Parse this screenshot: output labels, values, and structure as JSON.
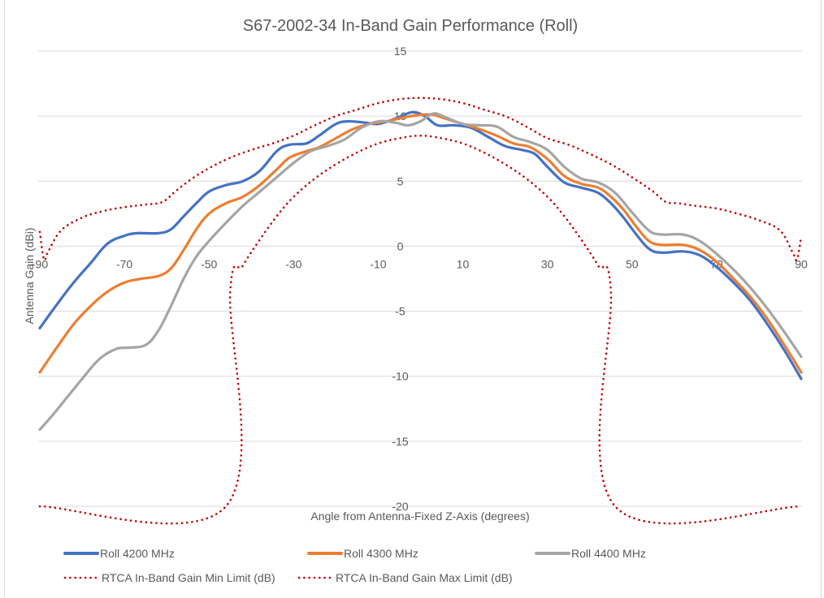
{
  "chart_data": {
    "type": "line",
    "title": "S67-2002-34 In-Band Gain Performance (Roll)",
    "xlabel": "Angle from Antenna-Fixed Z-Axis (degrees)",
    "ylabel": "Antenna Gain (dBi)",
    "xlim": [
      -90,
      90
    ],
    "ylim": [
      -20,
      15
    ],
    "x_ticks": [
      "-90",
      "-70",
      "-50",
      "-30",
      "-10",
      "10",
      "30",
      "50",
      "70",
      "90"
    ],
    "x_tick_values": [
      -90,
      -70,
      -50,
      -30,
      -10,
      10,
      30,
      50,
      70,
      90
    ],
    "y_ticks": [
      "15",
      "10",
      "5",
      "0",
      "-5",
      "-10",
      "-15",
      "-20"
    ],
    "y_tick_values": [
      15,
      10,
      5,
      0,
      -5,
      -10,
      -15,
      -20
    ],
    "grid": "horizontal",
    "legend_position": "bottom",
    "series": [
      {
        "name": "Roll 4200 MHz",
        "color": "#4472C4",
        "style": "solid",
        "points": [
          [
            -90,
            -6.3
          ],
          [
            -86,
            -4.5
          ],
          [
            -82,
            -2.8
          ],
          [
            -78,
            -1.3
          ],
          [
            -74,
            0.2
          ],
          [
            -70,
            0.8
          ],
          [
            -67,
            1.0
          ],
          [
            -62,
            1.0
          ],
          [
            -59,
            1.3
          ],
          [
            -56,
            2.3
          ],
          [
            -53,
            3.3
          ],
          [
            -50,
            4.2
          ],
          [
            -46,
            4.7
          ],
          [
            -42,
            5.0
          ],
          [
            -38,
            5.8
          ],
          [
            -34,
            7.3
          ],
          [
            -31,
            7.8
          ],
          [
            -27,
            7.9
          ],
          [
            -24,
            8.5
          ],
          [
            -20,
            9.4
          ],
          [
            -17,
            9.6
          ],
          [
            -13,
            9.5
          ],
          [
            -10,
            9.4
          ],
          [
            -6,
            9.8
          ],
          [
            -2,
            10.3
          ],
          [
            1,
            10.0
          ],
          [
            4,
            9.3
          ],
          [
            8,
            9.3
          ],
          [
            12,
            9.1
          ],
          [
            16,
            8.4
          ],
          [
            20,
            7.7
          ],
          [
            24,
            7.4
          ],
          [
            27,
            7.1
          ],
          [
            30,
            6.1
          ],
          [
            34,
            4.9
          ],
          [
            38,
            4.5
          ],
          [
            42,
            4.1
          ],
          [
            45,
            3.3
          ],
          [
            48,
            2.2
          ],
          [
            51,
            0.9
          ],
          [
            54,
            -0.2
          ],
          [
            57,
            -0.5
          ],
          [
            62,
            -0.4
          ],
          [
            66,
            -0.7
          ],
          [
            70,
            -1.6
          ],
          [
            74,
            -2.8
          ],
          [
            78,
            -4.2
          ],
          [
            82,
            -6.0
          ],
          [
            86,
            -8.0
          ],
          [
            90,
            -10.2
          ]
        ]
      },
      {
        "name": "Roll 4300 MHz",
        "color": "#ED7D31",
        "style": "solid",
        "points": [
          [
            -90,
            -9.7
          ],
          [
            -86,
            -7.8
          ],
          [
            -82,
            -6.0
          ],
          [
            -78,
            -4.6
          ],
          [
            -74,
            -3.5
          ],
          [
            -70,
            -2.8
          ],
          [
            -66,
            -2.5
          ],
          [
            -62,
            -2.3
          ],
          [
            -59,
            -1.7
          ],
          [
            -56,
            -0.3
          ],
          [
            -53,
            1.3
          ],
          [
            -50,
            2.5
          ],
          [
            -46,
            3.3
          ],
          [
            -42,
            3.8
          ],
          [
            -38,
            4.7
          ],
          [
            -34,
            5.9
          ],
          [
            -31,
            6.8
          ],
          [
            -27,
            7.3
          ],
          [
            -24,
            7.6
          ],
          [
            -20,
            8.3
          ],
          [
            -16,
            9.0
          ],
          [
            -12,
            9.4
          ],
          [
            -8,
            9.6
          ],
          [
            -4,
            9.9
          ],
          [
            0,
            10.1
          ],
          [
            3,
            10.1
          ],
          [
            6,
            9.8
          ],
          [
            10,
            9.4
          ],
          [
            14,
            9.0
          ],
          [
            18,
            8.5
          ],
          [
            22,
            7.9
          ],
          [
            26,
            7.6
          ],
          [
            30,
            6.7
          ],
          [
            34,
            5.4
          ],
          [
            38,
            4.8
          ],
          [
            42,
            4.5
          ],
          [
            45,
            3.8
          ],
          [
            48,
            2.8
          ],
          [
            51,
            1.5
          ],
          [
            54,
            0.4
          ],
          [
            57,
            0.1
          ],
          [
            62,
            0.1
          ],
          [
            66,
            -0.3
          ],
          [
            70,
            -1.2
          ],
          [
            74,
            -2.5
          ],
          [
            78,
            -3.9
          ],
          [
            82,
            -5.6
          ],
          [
            86,
            -7.6
          ],
          [
            90,
            -9.7
          ]
        ]
      },
      {
        "name": "Roll 4400 MHz",
        "color": "#A5A5A5",
        "style": "solid",
        "points": [
          [
            -90,
            -14.1
          ],
          [
            -87,
            -13.0
          ],
          [
            -84,
            -11.8
          ],
          [
            -80,
            -10.2
          ],
          [
            -76,
            -8.7
          ],
          [
            -72,
            -7.9
          ],
          [
            -69,
            -7.8
          ],
          [
            -65,
            -7.6
          ],
          [
            -62,
            -6.5
          ],
          [
            -59,
            -4.6
          ],
          [
            -56,
            -2.5
          ],
          [
            -53,
            -0.8
          ],
          [
            -50,
            0.4
          ],
          [
            -46,
            1.8
          ],
          [
            -42,
            3.1
          ],
          [
            -38,
            4.2
          ],
          [
            -34,
            5.3
          ],
          [
            -30,
            6.4
          ],
          [
            -26,
            7.3
          ],
          [
            -22,
            7.7
          ],
          [
            -18,
            8.2
          ],
          [
            -14,
            9.1
          ],
          [
            -10,
            9.6
          ],
          [
            -6,
            9.5
          ],
          [
            -3,
            9.3
          ],
          [
            0,
            9.6
          ],
          [
            3,
            10.2
          ],
          [
            6,
            9.9
          ],
          [
            10,
            9.4
          ],
          [
            14,
            9.3
          ],
          [
            18,
            9.2
          ],
          [
            22,
            8.4
          ],
          [
            26,
            8.0
          ],
          [
            30,
            7.4
          ],
          [
            34,
            6.1
          ],
          [
            38,
            5.2
          ],
          [
            42,
            4.9
          ],
          [
            46,
            4.1
          ],
          [
            50,
            2.6
          ],
          [
            54,
            1.2
          ],
          [
            57,
            0.9
          ],
          [
            62,
            0.9
          ],
          [
            66,
            0.4
          ],
          [
            70,
            -0.6
          ],
          [
            74,
            -1.8
          ],
          [
            78,
            -3.2
          ],
          [
            82,
            -4.8
          ],
          [
            86,
            -6.6
          ],
          [
            90,
            -8.5
          ]
        ]
      },
      {
        "name": "RTCA In-Band Gain Min Limit (dB)",
        "color": "#C00000",
        "style": "dotted",
        "points": [
          [
            -90,
            -20
          ],
          [
            -46,
            -20
          ],
          [
            -45,
            -3.5
          ],
          [
            -42,
            -1.5
          ],
          [
            -38,
            0.5
          ],
          [
            -34,
            2.3
          ],
          [
            -30,
            3.8
          ],
          [
            -25,
            5.2
          ],
          [
            -20,
            6.3
          ],
          [
            -15,
            7.2
          ],
          [
            -10,
            7.9
          ],
          [
            -5,
            8.3
          ],
          [
            0,
            8.5
          ],
          [
            5,
            8.3
          ],
          [
            10,
            7.9
          ],
          [
            15,
            7.2
          ],
          [
            20,
            6.3
          ],
          [
            25,
            5.2
          ],
          [
            30,
            3.8
          ],
          [
            34,
            2.3
          ],
          [
            38,
            0.5
          ],
          [
            42,
            -1.5
          ],
          [
            45,
            -3.5
          ],
          [
            46,
            -20
          ],
          [
            90,
            -20
          ]
        ]
      },
      {
        "name": "RTCA In-Band Gain Max Limit (dB)",
        "color": "#C00000",
        "style": "dotted",
        "points": [
          [
            -90,
            1.1
          ],
          [
            -89,
            -1.0
          ],
          [
            -88,
            -0.4
          ],
          [
            -85,
            1.2
          ],
          [
            -80,
            2.2
          ],
          [
            -75,
            2.7
          ],
          [
            -70,
            3.0
          ],
          [
            -65,
            3.2
          ],
          [
            -61,
            3.4
          ],
          [
            -58,
            4.2
          ],
          [
            -54,
            5.2
          ],
          [
            -50,
            6.0
          ],
          [
            -45,
            6.8
          ],
          [
            -40,
            7.4
          ],
          [
            -35,
            7.9
          ],
          [
            -30,
            8.5
          ],
          [
            -25,
            9.3
          ],
          [
            -20,
            10.0
          ],
          [
            -15,
            10.5
          ],
          [
            -10,
            11.0
          ],
          [
            -5,
            11.3
          ],
          [
            0,
            11.4
          ],
          [
            5,
            11.3
          ],
          [
            10,
            11.0
          ],
          [
            15,
            10.5
          ],
          [
            20,
            10.0
          ],
          [
            25,
            9.2
          ],
          [
            30,
            8.3
          ],
          [
            35,
            7.8
          ],
          [
            40,
            7.1
          ],
          [
            45,
            6.3
          ],
          [
            50,
            5.3
          ],
          [
            55,
            4.2
          ],
          [
            58,
            3.4
          ],
          [
            61,
            3.3
          ],
          [
            65,
            3.1
          ],
          [
            70,
            2.9
          ],
          [
            75,
            2.5
          ],
          [
            80,
            2.0
          ],
          [
            85,
            1.2
          ],
          [
            88,
            -0.5
          ],
          [
            89,
            -1.0
          ],
          [
            90,
            0.8
          ]
        ]
      }
    ]
  }
}
